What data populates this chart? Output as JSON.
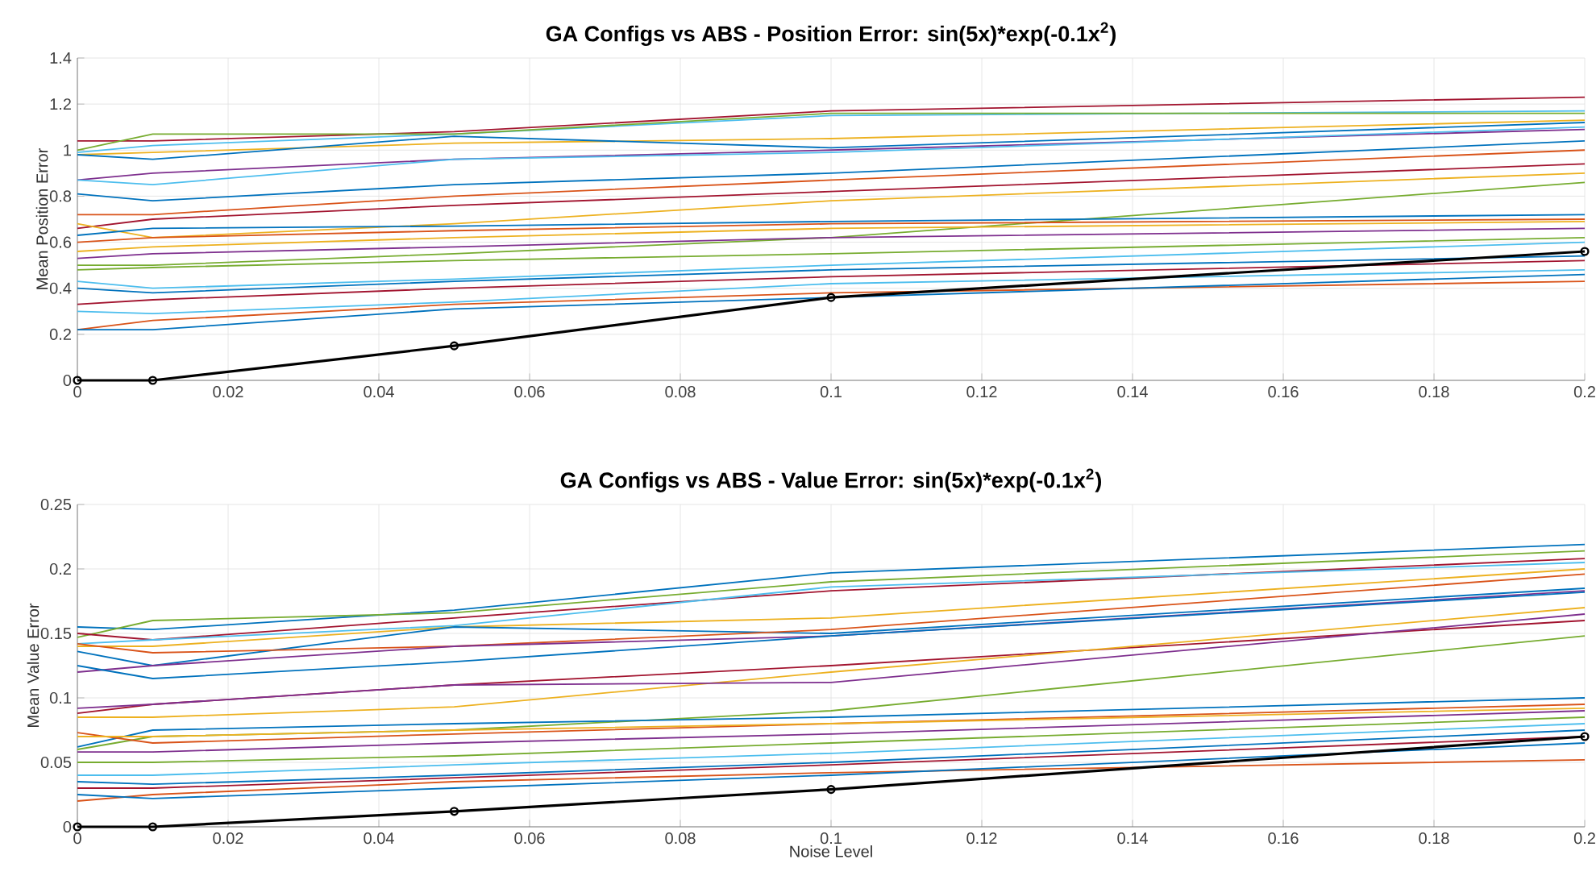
{
  "chart_data": [
    {
      "type": "line",
      "title": "GA Configs vs ABS - Position Error: sin(5x)*exp(-0.1x$^{2}$)",
      "ylabel": "Mean Position Error",
      "x": [
        0,
        0.01,
        0.05,
        0.1,
        0.2
      ],
      "xlim": [
        0,
        0.2
      ],
      "ylim": [
        0,
        1.4
      ],
      "xticks": [
        0,
        0.02,
        0.04,
        0.06,
        0.08,
        0.1,
        0.12,
        0.14,
        0.16,
        0.18,
        0.2
      ],
      "yticks": [
        0,
        0.2,
        0.4,
        0.6,
        0.8,
        1,
        1.2,
        1.4
      ],
      "grid": true,
      "marker": "none",
      "series": [
        {
          "color": "#a2142f",
          "values": [
            1.04,
            1.04,
            1.08,
            1.17,
            1.23
          ]
        },
        {
          "color": "#4dbeee",
          "values": [
            0.99,
            1.02,
            1.07,
            1.15,
            1.17
          ]
        },
        {
          "color": "#77ac30",
          "values": [
            1.0,
            1.07,
            1.07,
            1.16,
            1.16
          ]
        },
        {
          "color": "#edb120",
          "values": [
            0.98,
            0.99,
            1.03,
            1.05,
            1.13
          ]
        },
        {
          "color": "#0072bd",
          "values": [
            0.98,
            0.96,
            1.06,
            1.01,
            1.12
          ]
        },
        {
          "color": "#7e2f8e",
          "values": [
            0.87,
            0.9,
            0.96,
            1.0,
            1.09
          ]
        },
        {
          "color": "#4dbeee",
          "values": [
            0.87,
            0.85,
            0.96,
            0.99,
            1.1
          ]
        },
        {
          "color": "#0072bd",
          "values": [
            0.81,
            0.78,
            0.85,
            0.9,
            1.04
          ]
        },
        {
          "color": "#d95319",
          "values": [
            0.72,
            0.72,
            0.8,
            0.87,
            1.0
          ]
        },
        {
          "color": "#a2142f",
          "values": [
            0.66,
            0.7,
            0.76,
            0.82,
            0.94
          ]
        },
        {
          "color": "#edb120",
          "values": [
            0.68,
            0.62,
            0.68,
            0.78,
            0.9
          ]
        },
        {
          "color": "#77ac30",
          "values": [
            0.5,
            0.5,
            0.55,
            0.62,
            0.86
          ]
        },
        {
          "color": "#0072bd",
          "values": [
            0.63,
            0.66,
            0.67,
            0.69,
            0.72
          ]
        },
        {
          "color": "#d95319",
          "values": [
            0.6,
            0.62,
            0.65,
            0.68,
            0.7
          ]
        },
        {
          "color": "#edb120",
          "values": [
            0.56,
            0.58,
            0.62,
            0.66,
            0.69
          ]
        },
        {
          "color": "#7e2f8e",
          "values": [
            0.53,
            0.55,
            0.58,
            0.62,
            0.66
          ]
        },
        {
          "color": "#77ac30",
          "values": [
            0.48,
            0.49,
            0.52,
            0.55,
            0.62
          ]
        },
        {
          "color": "#4dbeee",
          "values": [
            0.43,
            0.4,
            0.44,
            0.5,
            0.6
          ]
        },
        {
          "color": "#0072bd",
          "values": [
            0.4,
            0.38,
            0.43,
            0.48,
            0.54
          ]
        },
        {
          "color": "#a2142f",
          "values": [
            0.33,
            0.35,
            0.4,
            0.45,
            0.52
          ]
        },
        {
          "color": "#4dbeee",
          "values": [
            0.3,
            0.29,
            0.34,
            0.42,
            0.48
          ]
        },
        {
          "color": "#d95319",
          "values": [
            0.22,
            0.26,
            0.33,
            0.38,
            0.43
          ]
        },
        {
          "color": "#0072bd",
          "values": [
            0.22,
            0.22,
            0.31,
            0.36,
            0.46
          ]
        },
        {
          "color": "#000000",
          "marker": "circle",
          "values": [
            0,
            0,
            0.15,
            0.36,
            0.56
          ]
        }
      ]
    },
    {
      "type": "line",
      "title": "GA Configs vs ABS - Value Error: sin(5x)*exp(-0.1x$^{2}$)",
      "xlabel": "Noise Level",
      "ylabel": "Mean Value Error",
      "x": [
        0,
        0.01,
        0.05,
        0.1,
        0.2
      ],
      "xlim": [
        0,
        0.2
      ],
      "ylim": [
        0,
        0.25
      ],
      "xticks": [
        0,
        0.02,
        0.04,
        0.06,
        0.08,
        0.1,
        0.12,
        0.14,
        0.16,
        0.18,
        0.2
      ],
      "yticks": [
        0,
        0.05,
        0.1,
        0.15,
        0.2,
        0.25
      ],
      "grid": true,
      "marker": "none",
      "series": [
        {
          "color": "#0072bd",
          "values": [
            0.155,
            0.153,
            0.168,
            0.197,
            0.219
          ]
        },
        {
          "color": "#77ac30",
          "values": [
            0.147,
            0.16,
            0.166,
            0.19,
            0.214
          ]
        },
        {
          "color": "#a2142f",
          "values": [
            0.15,
            0.145,
            0.162,
            0.183,
            0.208
          ]
        },
        {
          "color": "#4dbeee",
          "values": [
            0.142,
            0.145,
            0.156,
            0.186,
            0.205
          ]
        },
        {
          "color": "#edb120",
          "values": [
            0.14,
            0.14,
            0.155,
            0.162,
            0.2
          ]
        },
        {
          "color": "#0072bd",
          "values": [
            0.136,
            0.125,
            0.155,
            0.15,
            0.185
          ]
        },
        {
          "color": "#d95319",
          "values": [
            0.142,
            0.135,
            0.14,
            0.153,
            0.196
          ]
        },
        {
          "color": "#7e2f8e",
          "values": [
            0.12,
            0.125,
            0.14,
            0.148,
            0.183
          ]
        },
        {
          "color": "#0072bd",
          "values": [
            0.125,
            0.115,
            0.128,
            0.148,
            0.182
          ]
        },
        {
          "color": "#a2142f",
          "values": [
            0.088,
            0.095,
            0.11,
            0.125,
            0.16
          ]
        },
        {
          "color": "#edb120",
          "values": [
            0.085,
            0.085,
            0.093,
            0.12,
            0.17
          ]
        },
        {
          "color": "#7e2f8e",
          "values": [
            0.092,
            0.095,
            0.11,
            0.112,
            0.165
          ]
        },
        {
          "color": "#77ac30",
          "values": [
            0.06,
            0.07,
            0.075,
            0.09,
            0.148
          ]
        },
        {
          "color": "#0072bd",
          "values": [
            0.062,
            0.075,
            0.08,
            0.085,
            0.1
          ]
        },
        {
          "color": "#d95319",
          "values": [
            0.073,
            0.065,
            0.072,
            0.08,
            0.095
          ]
        },
        {
          "color": "#edb120",
          "values": [
            0.07,
            0.07,
            0.075,
            0.08,
            0.092
          ]
        },
        {
          "color": "#7e2f8e",
          "values": [
            0.058,
            0.058,
            0.065,
            0.072,
            0.09
          ]
        },
        {
          "color": "#77ac30",
          "values": [
            0.05,
            0.05,
            0.055,
            0.065,
            0.085
          ]
        },
        {
          "color": "#4dbeee",
          "values": [
            0.04,
            0.04,
            0.048,
            0.057,
            0.08
          ]
        },
        {
          "color": "#0072bd",
          "values": [
            0.035,
            0.033,
            0.04,
            0.05,
            0.075
          ]
        },
        {
          "color": "#a2142f",
          "values": [
            0.03,
            0.03,
            0.038,
            0.048,
            0.07
          ]
        },
        {
          "color": "#d95319",
          "values": [
            0.02,
            0.025,
            0.035,
            0.042,
            0.052
          ]
        },
        {
          "color": "#0072bd",
          "values": [
            0.025,
            0.022,
            0.03,
            0.04,
            0.065
          ]
        },
        {
          "color": "#000000",
          "marker": "circle",
          "values": [
            0,
            0,
            0.012,
            0.029,
            0.07
          ]
        }
      ]
    }
  ]
}
